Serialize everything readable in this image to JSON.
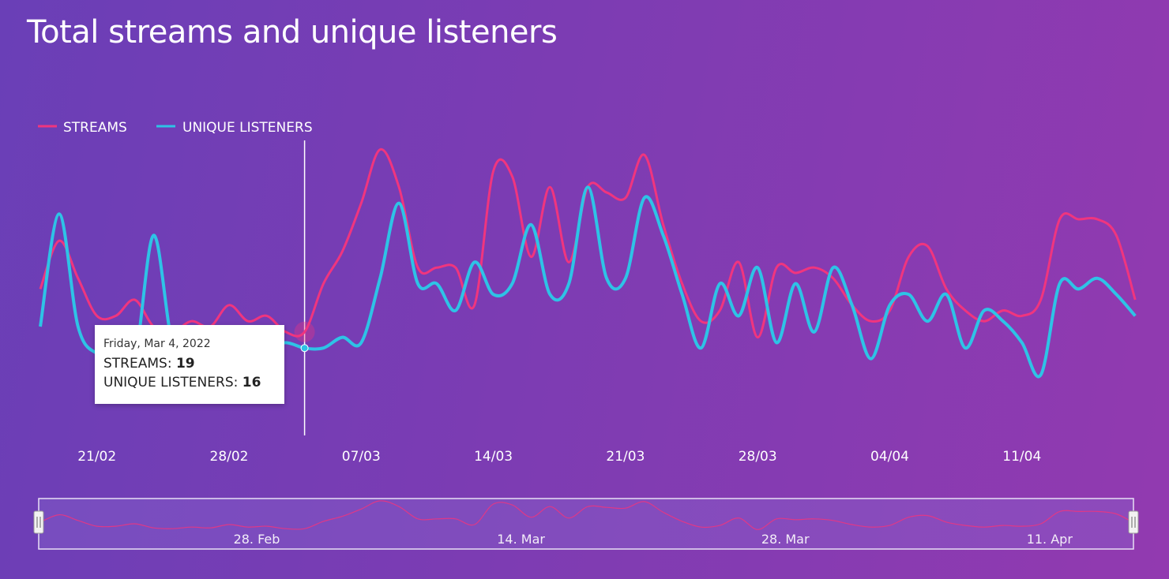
{
  "chart_data": {
    "type": "line",
    "title": "Total streams and unique listeners",
    "x": [
      "2022-02-18",
      "2022-02-19",
      "2022-02-20",
      "2022-02-21",
      "2022-02-22",
      "2022-02-23",
      "2022-02-24",
      "2022-02-25",
      "2022-02-26",
      "2022-02-27",
      "2022-02-28",
      "2022-03-01",
      "2022-03-02",
      "2022-03-03",
      "2022-03-04",
      "2022-03-05",
      "2022-03-06",
      "2022-03-07",
      "2022-03-08",
      "2022-03-09",
      "2022-03-10",
      "2022-03-11",
      "2022-03-12",
      "2022-03-13",
      "2022-03-14",
      "2022-03-15",
      "2022-03-16",
      "2022-03-17",
      "2022-03-18",
      "2022-03-19",
      "2022-03-20",
      "2022-03-21",
      "2022-03-22",
      "2022-03-23",
      "2022-03-24",
      "2022-03-25",
      "2022-03-26",
      "2022-03-27",
      "2022-03-28",
      "2022-03-29",
      "2022-03-30",
      "2022-03-31",
      "2022-04-01",
      "2022-04-02",
      "2022-04-03",
      "2022-04-04",
      "2022-04-05",
      "2022-04-06",
      "2022-04-07",
      "2022-04-08",
      "2022-04-09",
      "2022-04-10",
      "2022-04-11",
      "2022-04-12",
      "2022-04-13",
      "2022-04-14",
      "2022-04-15",
      "2022-04-16",
      "2022-04-17"
    ],
    "series": [
      {
        "name": "STREAMS",
        "color": "#f0357e",
        "values": [
          27,
          36,
          29,
          22,
          22,
          25,
          20,
          19,
          21,
          20,
          24,
          21,
          22,
          19,
          19,
          28,
          34,
          43,
          53,
          46,
          31,
          31,
          31,
          24,
          49,
          48,
          33,
          46,
          32,
          46,
          45,
          44,
          52,
          39,
          28,
          21,
          23,
          32,
          18,
          31,
          30,
          31,
          29,
          24,
          21,
          23,
          33,
          35,
          27,
          23,
          21,
          23,
          22,
          25,
          40,
          40,
          40,
          37,
          25
        ]
      },
      {
        "name": "UNIQUE LISTENERS",
        "color": "#2ec3e6",
        "values": [
          20,
          41,
          20,
          15,
          15,
          14,
          37,
          17,
          16,
          17,
          15,
          17,
          16,
          17,
          16,
          16,
          18,
          17,
          29,
          43,
          28,
          28,
          23,
          32,
          26,
          28,
          39,
          26,
          28,
          46,
          29,
          29,
          44,
          37,
          26,
          16,
          28,
          22,
          31,
          17,
          28,
          19,
          31,
          24,
          14,
          24,
          26,
          21,
          26,
          16,
          23,
          21,
          17,
          11,
          28,
          27,
          29,
          26,
          22
        ]
      }
    ],
    "x_ticks": [
      "21/02",
      "28/02",
      "07/03",
      "14/03",
      "21/03",
      "28/03",
      "04/04",
      "11/04"
    ],
    "legend": [
      "STREAMS",
      "UNIQUE LISTENERS"
    ],
    "legend_position": "top-left",
    "grid": false,
    "navigator_labels": [
      "28. Feb",
      "14. Mar",
      "28. Mar",
      "11. Apr"
    ]
  },
  "tooltip": {
    "date": "Friday, Mar 4, 2022",
    "streams_label": "STREAMS:",
    "streams_value": "19",
    "listeners_label": "UNIQUE LISTENERS:",
    "listeners_value": "16"
  }
}
